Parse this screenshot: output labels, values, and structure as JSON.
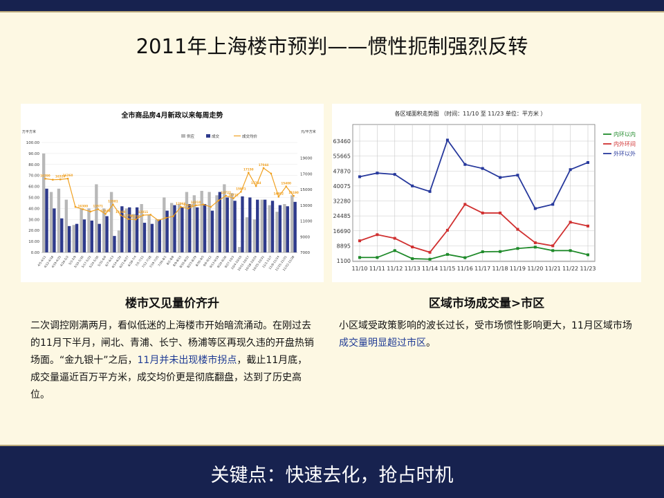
{
  "slide": {
    "title": "2011年上海楼市预判——惯性扼制强烈反转",
    "bottom_banner": "关键点：快速去化，抢占时机"
  },
  "left_section": {
    "heading": "楼市又见量价齐升",
    "paragraph": {
      "part1": "二次调控刚满两月，看似低迷的上海楼市开始暗流涌动。在刚过去的11月下半月，闸北、青浦、长宁、杨浦等区再现久违的开盘热销场面。“金九银十”之后，",
      "highlight": "11月并未出现楼市拐点",
      "part2": "，截止11月底，成交量逼近百万平方米，成交均价更是彻底翻盘，达到了历史高位。"
    }
  },
  "right_section": {
    "heading": "区域市场成交量>市区",
    "paragraph": {
      "part1": "小区域受政策影响的波长过长，受市场惯性影响更大，11月区域市场",
      "highlight": "成交量明显超过市区",
      "part2": "。"
    }
  },
  "colors": {
    "supply": "#b8b8b8",
    "deal": "#2e3a8c",
    "price": "#f0a020",
    "inner": "#1f8a2a",
    "middle": "#d03030",
    "outer": "#26389c",
    "band": "#17224f"
  },
  "chart_data": [
    {
      "type": "bar",
      "title": "全市商品房4月新政以来每周走势",
      "ylabel_left": "万平方米",
      "ylabel_right": "元/平方米",
      "ylim": [
        0,
        100
      ],
      "ylim_right": [
        7000,
        21000
      ],
      "left_ticks": [
        "100.00",
        "90.00",
        "80.00",
        "70.00",
        "60.00",
        "50.00",
        "40.00",
        "30.00",
        "20.00",
        "10.00",
        "0.00"
      ],
      "right_ticks": [
        "19000",
        "17000",
        "15000",
        "13000",
        "11000",
        "9000",
        "7000"
      ],
      "legend": [
        "供应",
        "成交",
        "成交均价"
      ],
      "legend_position": "top-right",
      "categories": [
        "4/5-4/11",
        "4/12-4/18",
        "4/19-4/25",
        "4/26-5/2",
        "5/3-5/9",
        "5/10-5/16",
        "5/17-5/23",
        "5/24-5/30",
        "5/31-6/6",
        "6/7-6/13",
        "6/14-6/20",
        "6/21-6/27",
        "6/28-7/4",
        "7/5-7/11",
        "7/12-7/18",
        "7/19-7/25",
        "7/26-8/1",
        "8/2-8/8",
        "8/9-8/15",
        "8/16-8/22",
        "8/23-8/29",
        "8/30-9/5",
        "9/6-9/12",
        "9/13-9/19",
        "9/20-9/26",
        "9/27-10/3",
        "10/4-10/10",
        "10/11-10/17",
        "10/18-10/24",
        "10/25-10/31",
        "11/1-11/7",
        "11/8-11/14",
        "11/15-11/21",
        "11/22-11/28"
      ],
      "series": [
        {
          "name": "供应",
          "values": [
            90,
            55,
            58,
            48,
            25,
            40,
            40,
            62,
            40,
            55,
            20,
            40,
            35,
            44,
            34,
            30,
            50,
            45,
            44,
            55,
            52,
            56,
            55,
            52,
            62,
            54,
            5,
            32,
            30,
            48,
            43,
            37,
            44,
            52
          ]
        },
        {
          "name": "成交",
          "values": [
            58,
            40,
            31,
            24,
            26,
            30,
            29,
            26,
            33,
            15,
            42,
            41,
            41,
            27,
            26,
            30,
            38,
            43,
            41,
            44,
            41,
            44,
            38,
            55,
            50,
            47,
            51,
            50,
            48,
            48,
            47,
            43,
            42,
            46
          ]
        },
        {
          "name": "成交均价",
          "values": [
            16390,
            16260,
            16300,
            16400,
            12800,
            12500,
            12200,
            12500,
            11900,
            13100,
            11750,
            11260,
            11200,
            11750,
            11800,
            11090,
            11400,
            11600,
            12800,
            12600,
            13000,
            13100,
            12800,
            13600,
            14210,
            13900,
            14722,
            17150,
            15450,
            17744,
            17044,
            14100,
            15400,
            14200
          ]
        }
      ],
      "data_labels": [
        "16390",
        "16329",
        "16260",
        "16300",
        "13381",
        "12844",
        "13571",
        "11860",
        "11752",
        "11260",
        "12811",
        "12966",
        "13044",
        "14210",
        "14722",
        "15871",
        "16722",
        "17150",
        "17744",
        "17044",
        "14892",
        "15400",
        "15190"
      ]
    },
    {
      "type": "line",
      "title": "各区域面积走势图  （时间：11/10 至 11/23    单位：平方米 ）",
      "categories": [
        "11/10",
        "11/11",
        "11/12",
        "11/13",
        "11/14",
        "11/15",
        "11/16",
        "11/17",
        "11/18",
        "11/19",
        "11/20",
        "11/21",
        "11/22",
        "11/23"
      ],
      "y_ticks": [
        "63460",
        "55665",
        "47870",
        "40075",
        "32280",
        "24485",
        "16690",
        "8895",
        "1100"
      ],
      "ylim": [
        1100,
        67000
      ],
      "legend_position": "right",
      "series": [
        {
          "name": "内环以内",
          "values": [
            2800,
            2800,
            6400,
            2200,
            1900,
            4400,
            2700,
            5800,
            5900,
            7500,
            8200,
            6400,
            6400,
            4200
          ]
        },
        {
          "name": "内外环间",
          "values": [
            11500,
            14700,
            12800,
            8300,
            5500,
            17000,
            30500,
            26000,
            26000,
            17500,
            10500,
            8900,
            21200,
            19200
          ]
        },
        {
          "name": "外环以外",
          "values": [
            44900,
            46800,
            46100,
            40100,
            37200,
            64000,
            51300,
            49200,
            44500,
            45700,
            28300,
            30500,
            48600,
            52300
          ]
        }
      ]
    }
  ]
}
